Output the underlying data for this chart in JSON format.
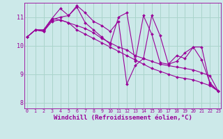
{
  "background_color": "#cce9e9",
  "grid_color": "#aad4cc",
  "line_color": "#990099",
  "marker_color": "#990099",
  "xlabel": "Windchill (Refroidissement éolien,°C)",
  "xlabel_fontsize": 6.5,
  "ytick_labels": [
    "8",
    "9",
    "10",
    "11"
  ],
  "ytick_values": [
    8,
    9,
    10,
    11
  ],
  "xtick_values": [
    0,
    1,
    2,
    3,
    4,
    5,
    6,
    7,
    8,
    9,
    10,
    11,
    12,
    13,
    14,
    15,
    16,
    17,
    18,
    19,
    20,
    21,
    22,
    23
  ],
  "ylim": [
    7.8,
    11.5
  ],
  "xlim": [
    -0.3,
    23.3
  ],
  "series": [
    [
      10.3,
      10.55,
      10.55,
      10.95,
      10.9,
      10.8,
      10.55,
      10.4,
      10.25,
      10.1,
      9.95,
      9.8,
      9.65,
      9.5,
      9.35,
      9.2,
      9.1,
      9.0,
      8.9,
      8.85,
      8.8,
      8.7,
      8.6,
      8.4
    ],
    [
      10.3,
      10.55,
      10.5,
      10.9,
      11.0,
      11.05,
      11.35,
      10.8,
      10.55,
      10.3,
      10.05,
      11.0,
      11.15,
      9.45,
      11.05,
      10.4,
      9.4,
      9.35,
      9.65,
      9.55,
      9.95,
      9.5,
      8.7,
      8.4
    ],
    [
      10.3,
      10.55,
      10.55,
      10.95,
      11.3,
      11.05,
      11.4,
      11.15,
      10.85,
      10.7,
      10.5,
      10.85,
      8.65,
      9.3,
      9.55,
      11.05,
      10.35,
      9.35,
      9.45,
      9.75,
      9.95,
      9.95,
      8.65,
      8.4
    ],
    [
      10.3,
      10.55,
      10.5,
      10.85,
      10.9,
      10.8,
      10.7,
      10.6,
      10.45,
      10.25,
      10.1,
      9.95,
      9.85,
      9.65,
      9.55,
      9.45,
      9.35,
      9.3,
      9.25,
      9.2,
      9.15,
      9.05,
      8.95,
      8.4
    ]
  ]
}
